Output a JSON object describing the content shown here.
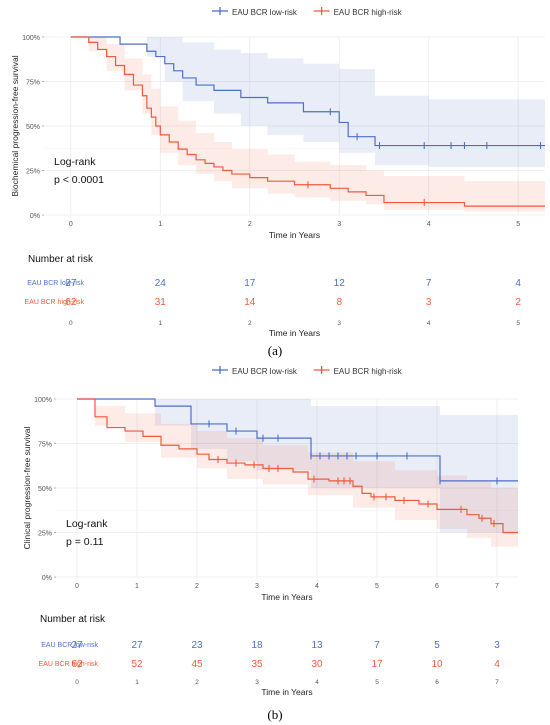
{
  "chart_data": [
    {
      "type": "line",
      "panel_label": "(a)",
      "legend": {
        "placement": "top",
        "entries": [
          "EAU BCR low-risk",
          "EAU BCR high-risk"
        ]
      },
      "ylabel": "Biochemical progression-free survival",
      "xlabel": "Time in Years",
      "yticks": [
        "0%",
        "25%",
        "50%",
        "75%",
        "100%"
      ],
      "xticks": [
        "0",
        "1",
        "2",
        "3",
        "4",
        "5"
      ],
      "xlim": [
        -0.3,
        5.3
      ],
      "ylim": [
        0,
        1
      ],
      "grid": true,
      "annotation": [
        "Log-rank",
        "p < 0.0001"
      ],
      "colors": {
        "low": "#4c6fc9",
        "high": "#f05a3c"
      },
      "series": [
        {
          "name": "EAU BCR low-risk",
          "x": [
            0,
            0.55,
            0.55,
            0.85,
            0.85,
            0.95,
            0.95,
            1.05,
            1.05,
            1.15,
            1.15,
            1.25,
            1.25,
            1.4,
            1.4,
            1.6,
            1.6,
            1.9,
            1.9,
            2.2,
            2.2,
            2.6,
            2.6,
            3.0,
            3.0,
            3.1,
            3.1,
            3.4,
            3.4,
            5.3
          ],
          "y": [
            1.0,
            1.0,
            0.96,
            0.96,
            0.92,
            0.92,
            0.89,
            0.89,
            0.85,
            0.85,
            0.81,
            0.81,
            0.77,
            0.77,
            0.73,
            0.73,
            0.7,
            0.7,
            0.66,
            0.66,
            0.63,
            0.63,
            0.58,
            0.58,
            0.52,
            0.52,
            0.44,
            0.44,
            0.39,
            0.39
          ],
          "censor_x": [
            2.9,
            3.2,
            3.45,
            3.95,
            4.25,
            4.4,
            4.65,
            5.25
          ],
          "ci_x": [
            0,
            0.55,
            0.85,
            1.05,
            1.25,
            1.6,
            1.9,
            2.2,
            2.6,
            3.0,
            3.4,
            4.0,
            5.3
          ],
          "ci_lower": [
            1.0,
            1.0,
            0.89,
            0.75,
            0.64,
            0.57,
            0.5,
            0.45,
            0.41,
            0.35,
            0.28,
            0.27,
            0.26
          ],
          "ci_upper": [
            1.0,
            1.0,
            1.0,
            1.0,
            0.97,
            0.93,
            0.91,
            0.88,
            0.85,
            0.82,
            0.67,
            0.65,
            0.63
          ]
        },
        {
          "name": "EAU BCR high-risk",
          "x": [
            0,
            0.2,
            0.2,
            0.3,
            0.3,
            0.4,
            0.4,
            0.5,
            0.5,
            0.6,
            0.6,
            0.7,
            0.7,
            0.8,
            0.8,
            0.85,
            0.85,
            0.9,
            0.9,
            0.95,
            0.95,
            1.0,
            1.0,
            1.1,
            1.1,
            1.2,
            1.2,
            1.3,
            1.3,
            1.4,
            1.4,
            1.5,
            1.5,
            1.6,
            1.6,
            1.7,
            1.7,
            1.8,
            1.8,
            2.0,
            2.0,
            2.2,
            2.2,
            2.5,
            2.5,
            2.9,
            2.9,
            3.1,
            3.1,
            3.3,
            3.3,
            3.5,
            3.5,
            4.4,
            4.4,
            5.3
          ],
          "y": [
            1.0,
            1.0,
            0.97,
            0.97,
            0.93,
            0.93,
            0.89,
            0.89,
            0.84,
            0.84,
            0.79,
            0.79,
            0.73,
            0.73,
            0.67,
            0.67,
            0.6,
            0.6,
            0.55,
            0.55,
            0.5,
            0.5,
            0.45,
            0.45,
            0.41,
            0.41,
            0.37,
            0.37,
            0.34,
            0.34,
            0.31,
            0.31,
            0.29,
            0.29,
            0.27,
            0.27,
            0.25,
            0.25,
            0.23,
            0.23,
            0.21,
            0.21,
            0.19,
            0.19,
            0.17,
            0.17,
            0.15,
            0.15,
            0.13,
            0.13,
            0.11,
            0.11,
            0.07,
            0.07,
            0.05,
            0.05
          ],
          "censor_x": [
            2.65,
            3.95
          ],
          "ci_x": [
            0,
            0.2,
            0.4,
            0.6,
            0.8,
            0.9,
            1.0,
            1.2,
            1.4,
            1.6,
            1.8,
            2.2,
            2.5,
            2.9,
            3.3,
            3.5,
            4.4,
            5.3
          ],
          "ci_lower": [
            1.0,
            0.92,
            0.81,
            0.7,
            0.57,
            0.45,
            0.35,
            0.28,
            0.23,
            0.19,
            0.15,
            0.12,
            0.1,
            0.08,
            0.06,
            0.03,
            0.02,
            0.01
          ],
          "ci_upper": [
            1.0,
            1.0,
            0.96,
            0.88,
            0.79,
            0.71,
            0.61,
            0.53,
            0.46,
            0.41,
            0.37,
            0.34,
            0.3,
            0.28,
            0.25,
            0.22,
            0.19,
            0.17
          ]
        }
      ],
      "risk_table": {
        "title": "Number at risk",
        "xlabel": "Time in Years",
        "xticks": [
          "0",
          "1",
          "2",
          "3",
          "4",
          "5"
        ],
        "rows": [
          {
            "label": "EAU BCR low-risk",
            "values": [
              "27",
              "24",
              "17",
              "12",
              "7",
              "4"
            ]
          },
          {
            "label": "EAU BCR high-risk",
            "values": [
              "62",
              "31",
              "14",
              "8",
              "3",
              "2"
            ]
          }
        ]
      }
    },
    {
      "type": "line",
      "panel_label": "(b)",
      "legend": {
        "placement": "top",
        "entries": [
          "EAU BCR low-risk",
          "EAU BCR high-risk"
        ]
      },
      "ylabel": "Clinical progression-free survival",
      "xlabel": "Time in Years",
      "yticks": [
        "0%",
        "25%",
        "50%",
        "75%",
        "100%"
      ],
      "xticks": [
        "0",
        "1",
        "2",
        "3",
        "4",
        "5",
        "6",
        "7"
      ],
      "xlim": [
        -0.35,
        7.35
      ],
      "ylim": [
        0,
        1
      ],
      "grid": true,
      "annotation": [
        "Log-rank",
        "p = 0.11"
      ],
      "colors": {
        "low": "#4c6fc9",
        "high": "#f05a3c"
      },
      "series": [
        {
          "name": "EAU BCR low-risk",
          "x": [
            0,
            1.3,
            1.3,
            1.9,
            1.9,
            2.5,
            2.5,
            3.0,
            3.0,
            3.9,
            3.9,
            6.05,
            6.05,
            7.35
          ],
          "y": [
            1.0,
            1.0,
            0.96,
            0.96,
            0.86,
            0.86,
            0.82,
            0.82,
            0.78,
            0.78,
            0.68,
            0.68,
            0.54,
            0.54
          ],
          "censor_x": [
            2.2,
            2.65,
            3.1,
            3.35,
            3.9,
            4.05,
            4.2,
            4.35,
            4.5,
            4.65,
            5.0,
            5.5,
            6.05,
            7.0
          ],
          "ci_x": [
            0,
            1.3,
            1.9,
            2.5,
            3.0,
            3.9,
            6.05,
            7.35
          ],
          "ci_lower": [
            1.0,
            0.85,
            0.72,
            0.65,
            0.6,
            0.5,
            0.25,
            0.25
          ],
          "ci_upper": [
            1.0,
            1.0,
            1.0,
            1.0,
            1.0,
            0.96,
            0.91,
            0.91
          ]
        },
        {
          "name": "EAU BCR high-risk",
          "x": [
            0,
            0.3,
            0.3,
            0.5,
            0.5,
            0.8,
            0.8,
            1.1,
            1.1,
            1.4,
            1.4,
            1.7,
            1.7,
            2.0,
            2.0,
            2.2,
            2.2,
            2.5,
            2.5,
            2.8,
            2.8,
            3.1,
            3.1,
            3.6,
            3.6,
            3.85,
            3.85,
            4.2,
            4.2,
            4.6,
            4.6,
            4.75,
            4.75,
            4.9,
            4.9,
            5.3,
            5.3,
            5.7,
            5.7,
            6.0,
            6.0,
            6.5,
            6.5,
            6.7,
            6.7,
            6.9,
            6.9,
            7.1,
            7.1,
            7.35
          ],
          "y": [
            1.0,
            1.0,
            0.9,
            0.9,
            0.84,
            0.84,
            0.82,
            0.82,
            0.79,
            0.79,
            0.74,
            0.74,
            0.72,
            0.72,
            0.69,
            0.69,
            0.66,
            0.66,
            0.64,
            0.64,
            0.63,
            0.63,
            0.61,
            0.61,
            0.59,
            0.59,
            0.55,
            0.55,
            0.54,
            0.54,
            0.51,
            0.51,
            0.47,
            0.47,
            0.45,
            0.45,
            0.43,
            0.43,
            0.41,
            0.41,
            0.38,
            0.38,
            0.35,
            0.35,
            0.33,
            0.33,
            0.3,
            0.3,
            0.25,
            0.25
          ],
          "censor_x": [
            2.35,
            2.65,
            2.95,
            3.2,
            3.35,
            3.95,
            4.35,
            4.45,
            4.55,
            4.95,
            5.15,
            5.45,
            5.85,
            6.4,
            6.75,
            6.95
          ],
          "ci_x": [
            0,
            0.3,
            0.8,
            1.4,
            2.0,
            2.5,
            3.1,
            3.85,
            4.6,
            5.3,
            6.0,
            6.5,
            6.9,
            7.35
          ],
          "ci_lower": [
            1.0,
            0.85,
            0.76,
            0.67,
            0.61,
            0.55,
            0.52,
            0.46,
            0.39,
            0.32,
            0.27,
            0.22,
            0.17,
            0.11
          ],
          "ci_upper": [
            1.0,
            0.96,
            0.92,
            0.86,
            0.82,
            0.78,
            0.74,
            0.7,
            0.65,
            0.6,
            0.57,
            0.54,
            0.5,
            0.44
          ]
        }
      ],
      "risk_table": {
        "title": "Number at risk",
        "xlabel": "Time in Years",
        "xticks": [
          "0",
          "1",
          "2",
          "3",
          "4",
          "5",
          "6",
          "7"
        ],
        "rows": [
          {
            "label": "EAU BCR low-risk",
            "values": [
              "27",
              "27",
              "23",
              "18",
              "13",
              "7",
              "5",
              "3"
            ]
          },
          {
            "label": "EAU BCR high-risk",
            "values": [
              "62",
              "52",
              "45",
              "35",
              "30",
              "17",
              "10",
              "4"
            ]
          }
        ]
      }
    }
  ]
}
